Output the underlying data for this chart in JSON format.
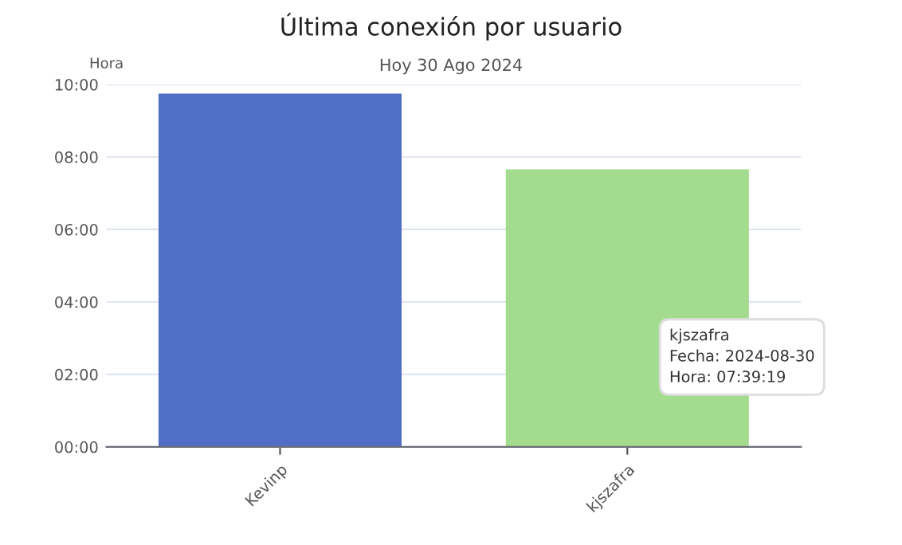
{
  "chart_data": {
    "type": "bar",
    "title": "Última conexión por usuario",
    "subtitle": "Hoy 30 Ago 2024",
    "ylabel": "Hora",
    "categories": [
      "Kevinp",
      "kjszafra"
    ],
    "values": [
      9.75,
      7.66
    ],
    "colors": [
      "#4f6ec4",
      "#a4dc8f"
    ],
    "ylim": [
      0,
      10
    ],
    "yticks": [
      {
        "value": 0,
        "label": "00:00"
      },
      {
        "value": 2,
        "label": "02:00"
      },
      {
        "value": 4,
        "label": "04:00"
      },
      {
        "value": 6,
        "label": "06:00"
      },
      {
        "value": 8,
        "label": "08:00"
      },
      {
        "value": 10,
        "label": "10:00"
      }
    ],
    "grid": "y",
    "annotations": [
      "kjszafra\nFecha: 2024-08-30\nHora: 07:39:19"
    ]
  }
}
